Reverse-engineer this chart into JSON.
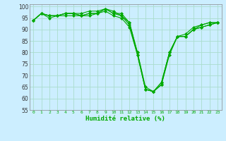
{
  "title": "",
  "xlabel": "Humidité relative (%)",
  "ylabel": "",
  "background_color": "#cceeff",
  "grid_color": "#aaddcc",
  "line_color": "#00aa00",
  "marker_color": "#00aa00",
  "xlim": [
    -0.5,
    23.5
  ],
  "ylim": [
    55,
    101
  ],
  "yticks": [
    55,
    60,
    65,
    70,
    75,
    80,
    85,
    90,
    95,
    100
  ],
  "xticks": [
    0,
    1,
    2,
    3,
    4,
    5,
    6,
    7,
    8,
    9,
    10,
    11,
    12,
    13,
    14,
    15,
    16,
    17,
    18,
    19,
    20,
    21,
    22,
    23
  ],
  "series": [
    [
      94,
      97,
      96,
      96,
      97,
      97,
      97,
      98,
      98,
      99,
      97,
      97,
      93,
      80,
      64,
      63,
      67,
      80,
      87,
      88,
      91,
      92,
      93,
      93
    ],
    [
      94,
      97,
      96,
      96,
      97,
      97,
      96,
      97,
      97,
      99,
      97,
      96,
      92,
      79,
      64,
      63,
      66,
      80,
      87,
      87,
      90,
      92,
      93,
      93
    ],
    [
      94,
      97,
      96,
      96,
      97,
      97,
      96,
      97,
      97,
      99,
      98,
      96,
      93,
      80,
      65,
      63,
      66,
      79,
      87,
      87,
      90,
      91,
      92,
      93
    ],
    [
      94,
      97,
      95,
      96,
      96,
      96,
      96,
      96,
      97,
      98,
      96,
      95,
      91,
      79,
      64,
      63,
      67,
      80,
      87,
      87,
      90,
      91,
      92,
      93
    ]
  ]
}
